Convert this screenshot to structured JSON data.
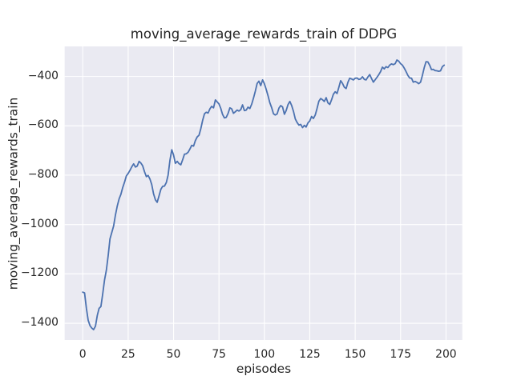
{
  "chart_data": {
    "type": "line",
    "title": "moving_average_rewards_train of DDPG",
    "xlabel": "episodes",
    "ylabel": "moving_average_rewards_train",
    "x_mode": "index (episode 0..199)",
    "grid": true,
    "legend": null,
    "xlim": [
      -9.95,
      208.95
    ],
    "ylim": [
      -1468,
      -278
    ],
    "x_ticks": {
      "values": [
        0,
        25,
        50,
        75,
        100,
        125,
        150,
        175,
        200
      ],
      "labels": [
        "0",
        "25",
        "50",
        "75",
        "100",
        "125",
        "150",
        "175",
        "200"
      ]
    },
    "y_ticks": {
      "values": [
        -400,
        -600,
        -800,
        -1000,
        -1200,
        -1400
      ],
      "labels": [
        "−400",
        "−600",
        "−800",
        "−1000",
        "−1200",
        "−1400"
      ]
    },
    "colors": {
      "figure_bg": "#FFFFFF",
      "plot_bg": "#EAEAF2",
      "grid": "#FFFFFF",
      "text": "#262626",
      "line": "#4C72B0"
    },
    "series": [
      {
        "name": "moving_average_rewards_train",
        "color": "#4C72B0",
        "values": [
          -1274,
          -1277,
          -1340,
          -1388,
          -1410,
          -1420,
          -1426,
          -1412,
          -1368,
          -1340,
          -1332,
          -1280,
          -1225,
          -1185,
          -1125,
          -1058,
          -1032,
          -1005,
          -962,
          -925,
          -896,
          -878,
          -850,
          -828,
          -803,
          -793,
          -780,
          -766,
          -754,
          -767,
          -763,
          -744,
          -751,
          -762,
          -786,
          -806,
          -801,
          -816,
          -838,
          -876,
          -900,
          -910,
          -884,
          -857,
          -845,
          -844,
          -830,
          -800,
          -740,
          -697,
          -718,
          -752,
          -744,
          -753,
          -758,
          -737,
          -715,
          -713,
          -707,
          -694,
          -679,
          -682,
          -660,
          -645,
          -638,
          -612,
          -578,
          -551,
          -545,
          -548,
          -531,
          -521,
          -527,
          -495,
          -503,
          -511,
          -530,
          -554,
          -568,
          -566,
          -550,
          -527,
          -531,
          -549,
          -543,
          -536,
          -540,
          -534,
          -515,
          -538,
          -536,
          -524,
          -530,
          -512,
          -488,
          -460,
          -428,
          -419,
          -437,
          -414,
          -429,
          -452,
          -478,
          -506,
          -526,
          -551,
          -556,
          -552,
          -528,
          -518,
          -523,
          -553,
          -538,
          -514,
          -501,
          -517,
          -541,
          -572,
          -586,
          -597,
          -594,
          -607,
          -598,
          -605,
          -588,
          -580,
          -562,
          -570,
          -556,
          -530,
          -500,
          -489,
          -494,
          -501,
          -486,
          -507,
          -513,
          -494,
          -472,
          -462,
          -469,
          -444,
          -417,
          -428,
          -443,
          -449,
          -423,
          -407,
          -410,
          -414,
          -407,
          -406,
          -412,
          -410,
          -401,
          -412,
          -414,
          -402,
          -392,
          -408,
          -423,
          -413,
          -403,
          -392,
          -380,
          -362,
          -369,
          -360,
          -364,
          -354,
          -349,
          -352,
          -348,
          -333,
          -338,
          -348,
          -354,
          -366,
          -380,
          -395,
          -406,
          -407,
          -423,
          -420,
          -424,
          -429,
          -423,
          -395,
          -365,
          -340,
          -341,
          -354,
          -372,
          -371,
          -376,
          -377,
          -379,
          -377,
          -360,
          -354
        ]
      }
    ]
  }
}
